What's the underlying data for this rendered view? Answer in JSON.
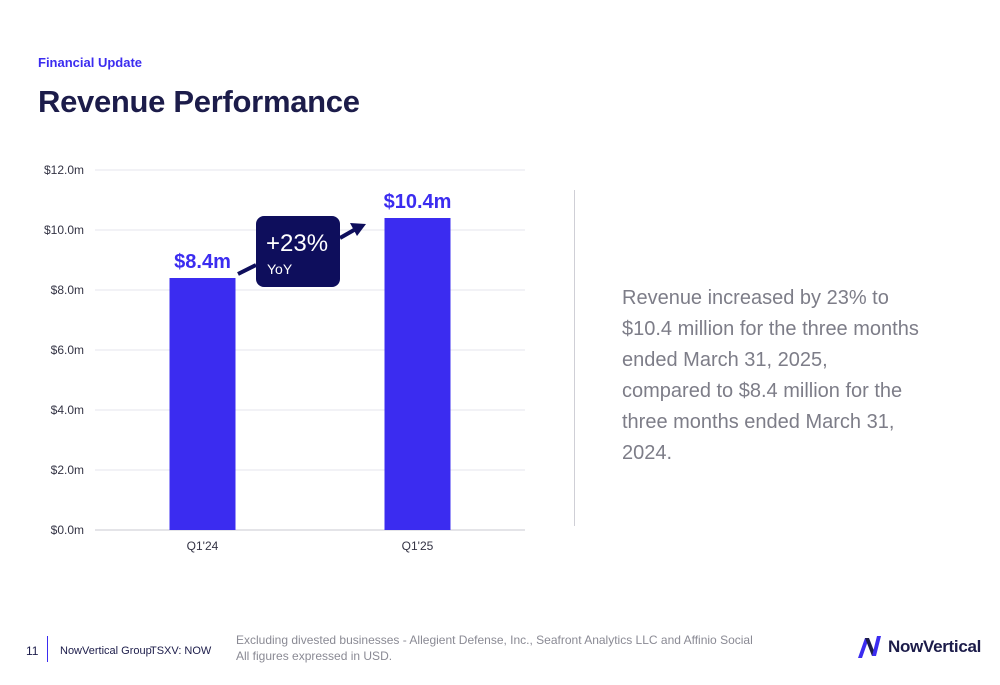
{
  "header": {
    "eyebrow": "Financial Update",
    "title": "Revenue Performance"
  },
  "chart_data": {
    "type": "bar",
    "categories": [
      "Q1'24",
      "Q1'25"
    ],
    "values": [
      8.4,
      10.4
    ],
    "data_labels": [
      "$8.4m",
      "$10.4m"
    ],
    "ylim": [
      0,
      12
    ],
    "yticks": [
      0,
      2,
      4,
      6,
      8,
      10,
      12
    ],
    "ytick_labels": [
      "$0.0m",
      "$2.0m",
      "$4.0m",
      "$6.0m",
      "$8.0m",
      "$10.0m",
      "$12.0m"
    ],
    "grid": true,
    "bar_color": "#3b2cf0",
    "annotation": {
      "main": "+23%",
      "sub": "YoY",
      "color": "#0e0e5c"
    }
  },
  "summary": {
    "text": "Revenue increased by 23% to $10.4 million for the three months ended March 31, 2025, compared to $8.4 million for the three months ended March 31, 2024."
  },
  "footer": {
    "page_number": "11",
    "company": "NowVertical Group",
    "ticker": "TSXV: NOW",
    "note_line1": "Excluding divested businesses - Allegient Defense, Inc., Seafront Analytics LLC and Affinio Social",
    "note_line2": "All figures expressed in USD.",
    "logo_text": "NowVertical",
    "logo_icon": "nowvertical-logo-icon"
  }
}
